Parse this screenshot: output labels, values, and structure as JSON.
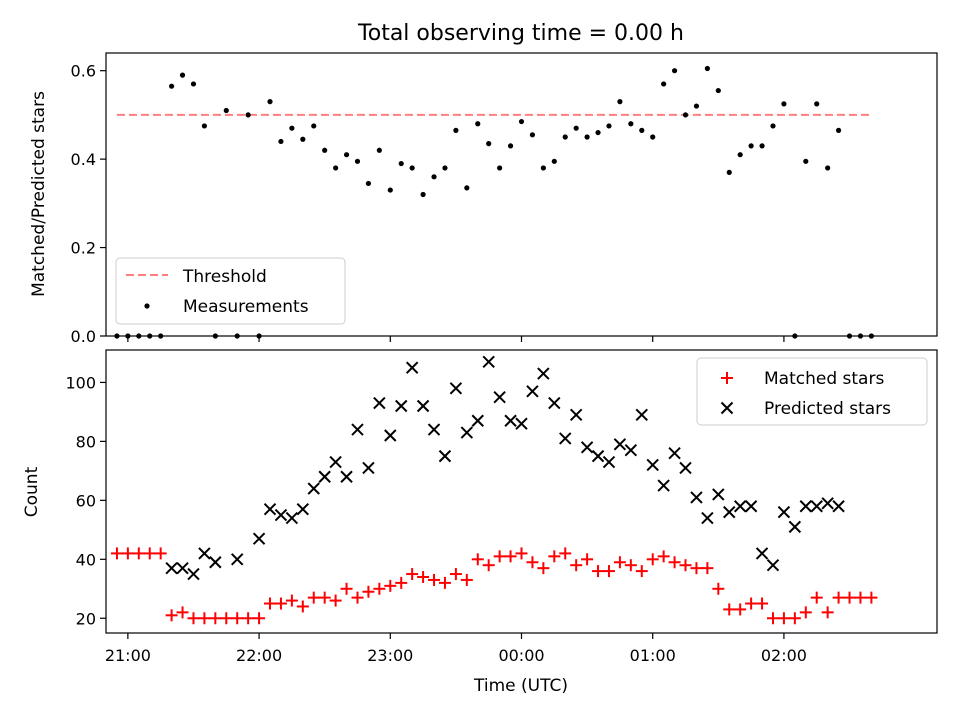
{
  "chart_data": [
    {
      "type": "scatter",
      "title": "Total observing time = 0.00 h",
      "xlabel": "",
      "ylabel": "Matched/Predicted stars",
      "xlim": [
        "20:50",
        "03:10"
      ],
      "ylim": [
        0,
        0.64
      ],
      "yticks": [
        0.0,
        0.2,
        0.4,
        0.6
      ],
      "ytick_labels": [
        "0.0",
        "0.2",
        "0.4",
        "0.6"
      ],
      "legend": "lower-left",
      "threshold": {
        "name": "Threshold",
        "y": 0.5,
        "x_start": "20:55",
        "x_end": "02:40",
        "color": "#ff7f7f"
      },
      "series": [
        {
          "name": "Measurements",
          "color": "#000000",
          "x": [
            "20:55",
            "21:00",
            "21:05",
            "21:10",
            "21:15",
            "21:20",
            "21:25",
            "21:30",
            "21:35",
            "21:40",
            "21:45",
            "21:50",
            "21:55",
            "22:00",
            "22:05",
            "22:10",
            "22:15",
            "22:20",
            "22:25",
            "22:30",
            "22:35",
            "22:40",
            "22:45",
            "22:50",
            "22:55",
            "23:00",
            "23:05",
            "23:10",
            "23:15",
            "23:20",
            "23:25",
            "23:30",
            "23:35",
            "23:40",
            "23:45",
            "23:50",
            "23:55",
            "00:00",
            "00:05",
            "00:10",
            "00:15",
            "00:20",
            "00:25",
            "00:30",
            "00:35",
            "00:40",
            "00:45",
            "00:50",
            "00:55",
            "01:00",
            "01:05",
            "01:10",
            "01:15",
            "01:20",
            "01:25",
            "01:30",
            "01:35",
            "01:40",
            "01:45",
            "01:50",
            "01:55",
            "02:00",
            "02:05",
            "02:10",
            "02:15",
            "02:20",
            "02:25",
            "02:30",
            "02:35",
            "02:40"
          ],
          "y": [
            0,
            0,
            0,
            0,
            0,
            0.565,
            0.59,
            0.57,
            0.475,
            0,
            0.51,
            0,
            0.5,
            0,
            0.53,
            0.44,
            0.47,
            0.445,
            0.475,
            0.42,
            0.38,
            0.41,
            0.395,
            0.345,
            0.42,
            0.33,
            0.39,
            0.38,
            0.32,
            0.36,
            0.38,
            0.465,
            0.335,
            0.48,
            0.435,
            0.38,
            0.43,
            0.485,
            0.455,
            0.38,
            0.395,
            0.45,
            0.47,
            0.45,
            0.46,
            0.475,
            0.53,
            0.48,
            0.465,
            0.45,
            0.57,
            0.6,
            0.5,
            0.52,
            0.605,
            0.555,
            0.37,
            0.41,
            0.43,
            0.43,
            0.475,
            0.525,
            0,
            0.395,
            0.525,
            0.38,
            0.465,
            0,
            0,
            0
          ]
        }
      ]
    },
    {
      "type": "scatter",
      "title": "",
      "xlabel": "Time (UTC)",
      "ylabel": "Count",
      "xlim": [
        "20:50",
        "03:10"
      ],
      "ylim": [
        15,
        111
      ],
      "yticks": [
        20,
        40,
        60,
        80,
        100
      ],
      "ytick_labels": [
        "20",
        "40",
        "60",
        "80",
        "100"
      ],
      "xticks": [
        "21:00",
        "22:00",
        "23:00",
        "00:00",
        "01:00",
        "02:00"
      ],
      "legend": "top-right",
      "series": [
        {
          "name": "Matched stars",
          "marker": "+",
          "color": "#ff0000",
          "x": [
            "20:55",
            "21:00",
            "21:05",
            "21:10",
            "21:15",
            "21:20",
            "21:25",
            "21:30",
            "21:35",
            "21:40",
            "21:45",
            "21:50",
            "21:55",
            "22:00",
            "22:05",
            "22:10",
            "22:15",
            "22:20",
            "22:25",
            "22:30",
            "22:35",
            "22:40",
            "22:45",
            "22:50",
            "22:55",
            "23:00",
            "23:05",
            "23:10",
            "23:15",
            "23:20",
            "23:25",
            "23:30",
            "23:35",
            "23:40",
            "23:45",
            "23:50",
            "23:55",
            "00:00",
            "00:05",
            "00:10",
            "00:15",
            "00:20",
            "00:25",
            "00:30",
            "00:35",
            "00:40",
            "00:45",
            "00:50",
            "00:55",
            "01:00",
            "01:05",
            "01:10",
            "01:15",
            "01:20",
            "01:25",
            "01:30",
            "01:35",
            "01:40",
            "01:45",
            "01:50",
            "01:55",
            "02:00",
            "02:05",
            "02:10",
            "02:15",
            "02:20",
            "02:25",
            "02:30",
            "02:35",
            "02:40"
          ],
          "y": [
            42,
            42,
            42,
            42,
            42,
            21,
            22,
            20,
            20,
            20,
            20,
            20,
            20,
            20,
            25,
            25,
            26,
            24,
            27,
            27,
            26,
            30,
            27,
            29,
            30,
            31,
            32,
            35,
            34,
            33,
            32,
            35,
            33,
            40,
            38,
            41,
            41,
            42,
            39,
            37,
            41,
            42,
            38,
            40,
            36,
            36,
            39,
            38,
            36,
            40,
            41,
            39,
            38,
            37,
            37,
            30,
            23,
            23,
            25,
            25,
            20,
            20,
            20,
            22,
            27,
            22,
            27,
            27,
            27,
            27
          ]
        },
        {
          "name": "Predicted stars",
          "marker": "x",
          "color": "#000000",
          "x": [
            "21:20",
            "21:25",
            "21:30",
            "21:35",
            "21:40",
            "21:50",
            "22:00",
            "22:05",
            "22:10",
            "22:15",
            "22:20",
            "22:25",
            "22:30",
            "22:35",
            "22:40",
            "22:45",
            "22:50",
            "22:55",
            "23:00",
            "23:05",
            "23:10",
            "23:15",
            "23:20",
            "23:25",
            "23:30",
            "23:35",
            "23:40",
            "23:45",
            "23:50",
            "23:55",
            "00:00",
            "00:05",
            "00:10",
            "00:15",
            "00:20",
            "00:25",
            "00:30",
            "00:35",
            "00:40",
            "00:45",
            "00:50",
            "00:55",
            "01:00",
            "01:05",
            "01:10",
            "01:15",
            "01:20",
            "01:25",
            "01:30",
            "01:35",
            "01:40",
            "01:45",
            "01:50",
            "01:55",
            "02:00",
            "02:05",
            "02:10",
            "02:15",
            "02:20",
            "02:25"
          ],
          "y": [
            37,
            37,
            35,
            42,
            39,
            40,
            47,
            57,
            55,
            54,
            57,
            64,
            68,
            73,
            68,
            84,
            71,
            93,
            82,
            92,
            105,
            92,
            84,
            75,
            98,
            83,
            87,
            107,
            95,
            87,
            86,
            97,
            103,
            93,
            81,
            89,
            78,
            75,
            73,
            79,
            77,
            89,
            72,
            65,
            76,
            71,
            61,
            54,
            62,
            56,
            58,
            58,
            42,
            38,
            56,
            51,
            58,
            58,
            59,
            58
          ]
        }
      ]
    }
  ]
}
